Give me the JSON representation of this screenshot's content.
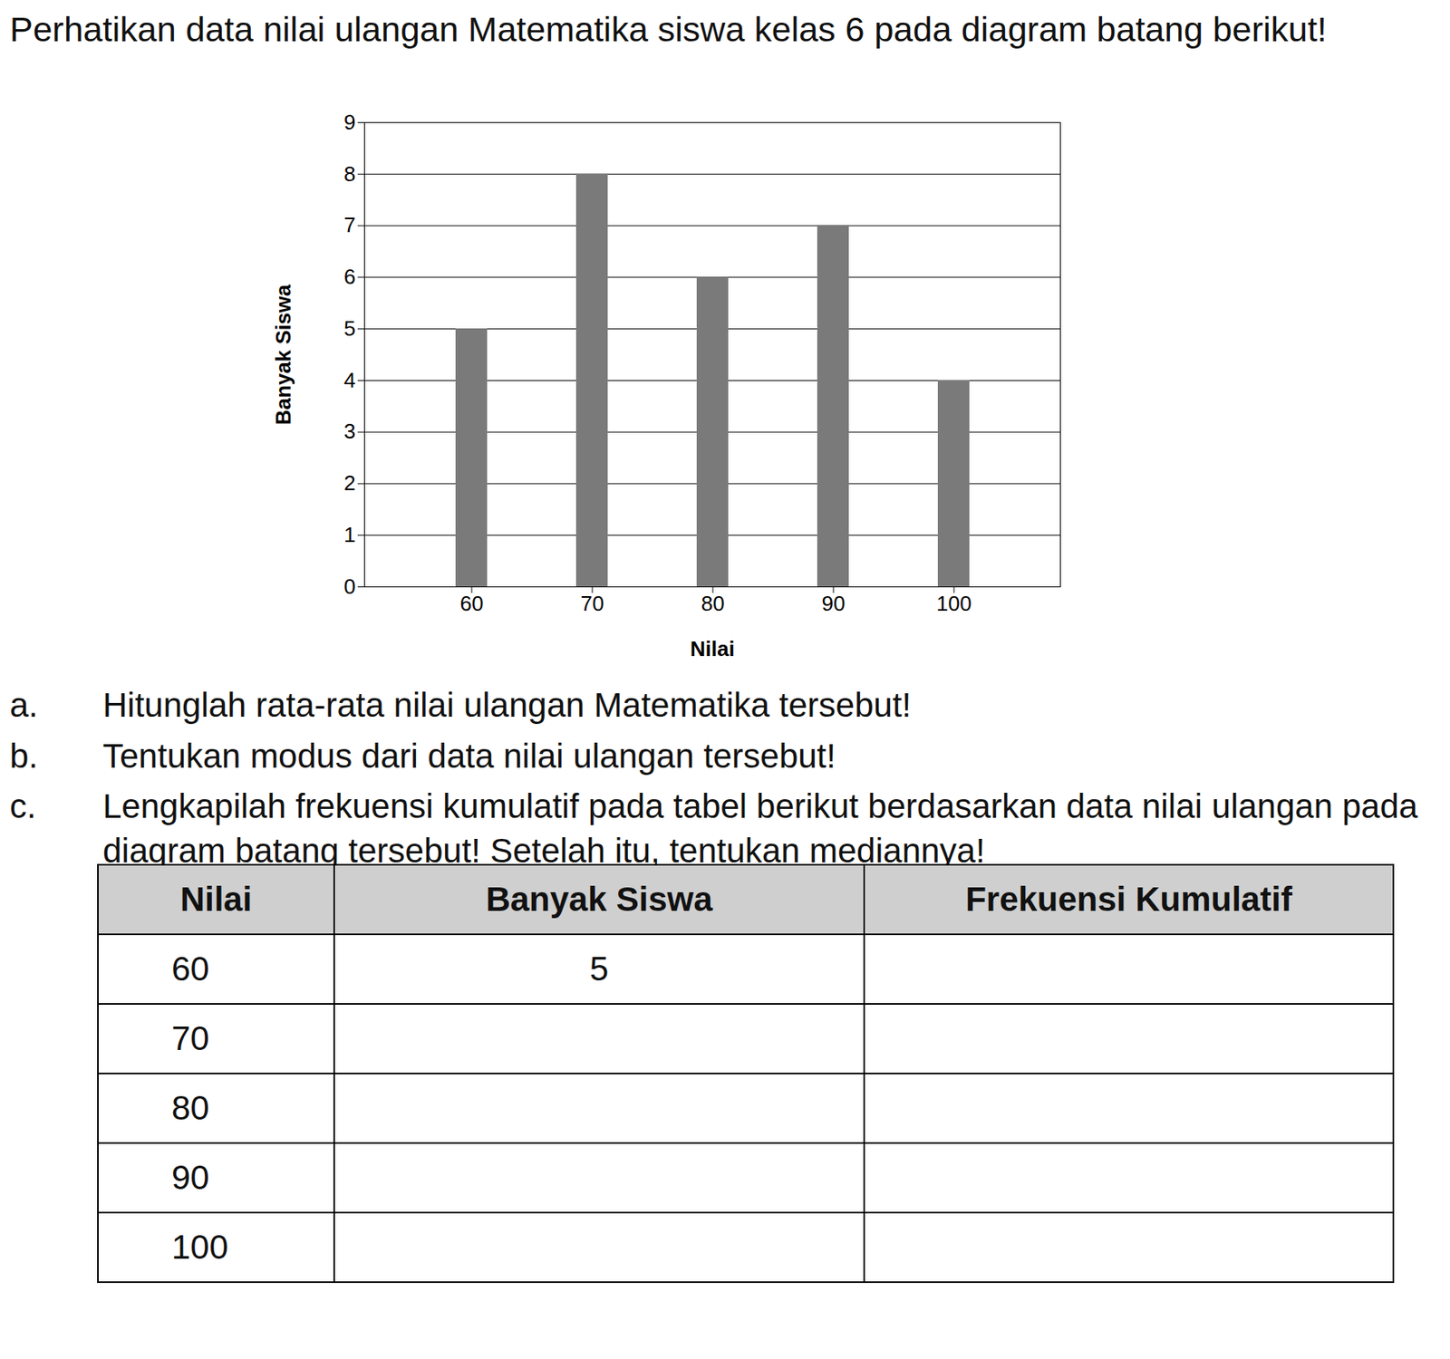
{
  "intro": "Perhatikan data nilai ulangan Matematika siswa kelas 6 pada diagram batang berikut!",
  "chart_data": {
    "type": "bar",
    "categories": [
      "60",
      "70",
      "80",
      "90",
      "100"
    ],
    "values": [
      5,
      8,
      6,
      7,
      4
    ],
    "color": "#7a7a7a",
    "x_label": "Nilai",
    "y_label": "Banyak Siswa",
    "ylim": [
      0,
      9
    ],
    "yticks": [
      0,
      1,
      2,
      3,
      4,
      5,
      6,
      7,
      8,
      9
    ],
    "grid": true
  },
  "questions": [
    {
      "label": "a.",
      "text": "Hitunglah rata-rata nilai ulangan Matematika tersebut!"
    },
    {
      "label": "b.",
      "text": "Tentukan modus dari data nilai ulangan tersebut!"
    },
    {
      "label": "c.",
      "text": "Lengkapilah frekuensi kumulatif pada tabel berikut berdasarkan data nilai ulangan pada diagram batang tersebut! Setelah itu, tentukan mediannya!"
    }
  ],
  "table": {
    "header": [
      "Nilai",
      "Banyak Siswa",
      "Frekuensi Kumulatif"
    ],
    "rows": [
      [
        "60",
        "5",
        null
      ],
      [
        "70",
        null,
        null
      ],
      [
        "80",
        null,
        null
      ],
      [
        "90",
        null,
        null
      ],
      [
        "100",
        null,
        null
      ]
    ]
  }
}
